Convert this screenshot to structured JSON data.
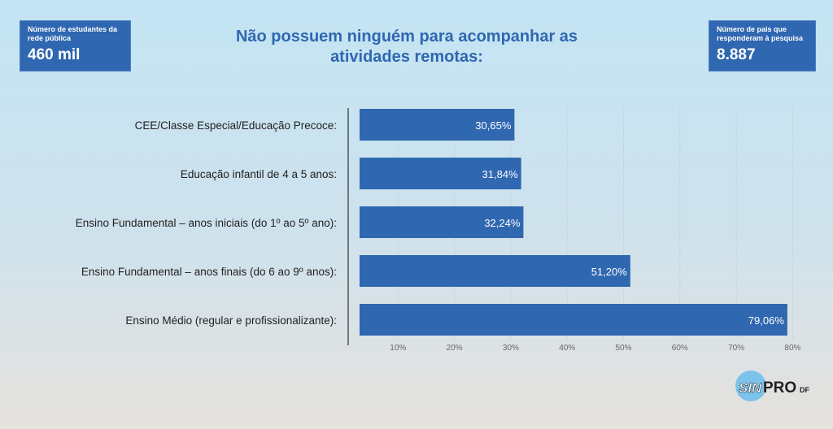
{
  "stat_left": {
    "label": "Número de estudantes da rede pública",
    "value": "460 mil"
  },
  "stat_right": {
    "label": "Número de pais que responderam à pesquisa",
    "value": "8.887"
  },
  "logo": {
    "text": "SINPRO",
    "suffix": "DF"
  },
  "chart_data": {
    "type": "bar",
    "orientation": "horizontal",
    "title": "Não possuem ninguém para acompanhar as atividades remotas:",
    "categories": [
      "CEE/Classe Especial/Educação Precoce:",
      "Educação infantil de 4 a 5 anos:",
      "Ensino Fundamental – anos iniciais (do 1º ao 5º ano):",
      "Ensino Fundamental – anos finais (do 6 ao 9º anos):",
      "Ensino Médio (regular e profissionalizante):"
    ],
    "values": [
      30.65,
      31.84,
      32.24,
      51.2,
      79.06
    ],
    "value_labels": [
      "30,65%",
      "31,84%",
      "32,24%",
      "51,20%",
      "79,06%"
    ],
    "xticks": [
      "10%",
      "20%",
      "30%",
      "40%",
      "50%",
      "60%",
      "70%",
      "80%"
    ],
    "xtick_values": [
      10,
      20,
      30,
      40,
      50,
      60,
      70,
      80
    ],
    "xlim": [
      0,
      80
    ],
    "grid": true,
    "bar_color": "#2f67b1"
  }
}
